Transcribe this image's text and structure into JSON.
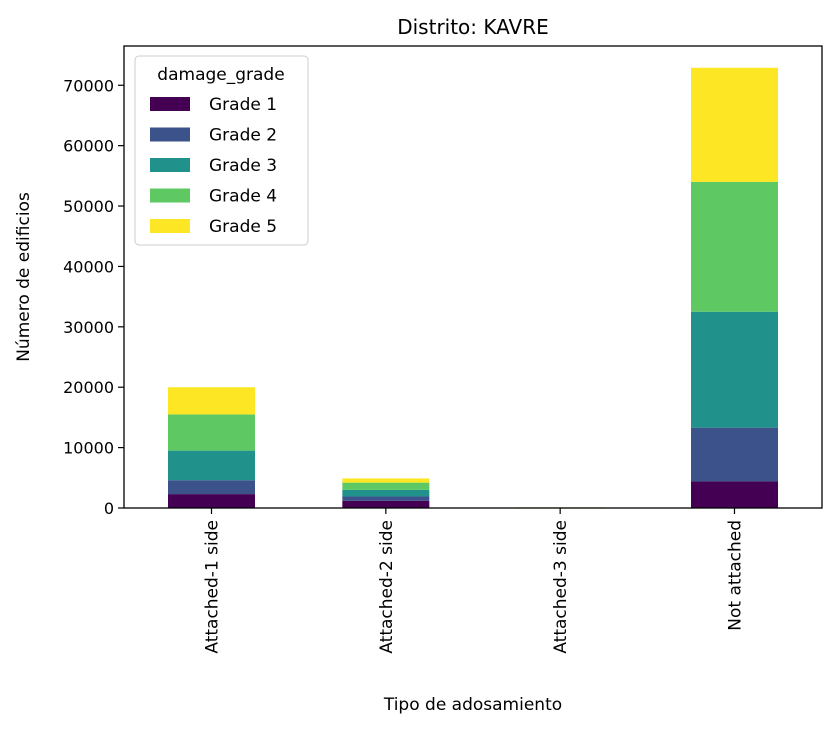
{
  "chart_data": {
    "type": "bar",
    "stacked": true,
    "title": "Distrito: KAVRE",
    "xlabel": "Tipo de adosamiento",
    "ylabel": "Número de edificios",
    "categories": [
      "Attached-1 side",
      "Attached-2 side",
      "Attached-3 side",
      "Not attached"
    ],
    "ylim": [
      0,
      76500
    ],
    "yticks": [
      0,
      10000,
      20000,
      30000,
      40000,
      50000,
      60000,
      70000
    ],
    "ytick_labels": [
      "0",
      "10000",
      "20000",
      "30000",
      "40000",
      "50000",
      "60000",
      "70000"
    ],
    "legend": {
      "title": "damage_grade",
      "position": "top-left"
    },
    "grid": false,
    "series": [
      {
        "name": "Grade 1",
        "color": "#440154",
        "values": [
          2300,
          1200,
          20,
          4400
        ]
      },
      {
        "name": "Grade 2",
        "color": "#3b528b",
        "values": [
          2300,
          700,
          15,
          8900
        ]
      },
      {
        "name": "Grade 3",
        "color": "#21918c",
        "values": [
          4900,
          1100,
          25,
          19200
        ]
      },
      {
        "name": "Grade 4",
        "color": "#5ec962",
        "values": [
          6000,
          1200,
          30,
          21500
        ]
      },
      {
        "name": "Grade 5",
        "color": "#fde725",
        "values": [
          4500,
          700,
          20,
          18900
        ]
      }
    ]
  }
}
